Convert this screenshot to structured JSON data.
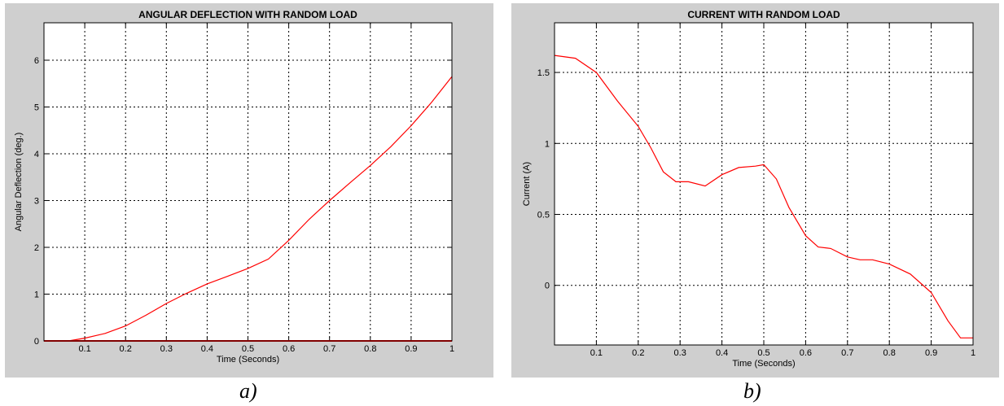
{
  "chart_data": [
    {
      "type": "line",
      "title": "ANGULAR DEFLECTION WITH RANDOM LOAD",
      "xlabel": "Time (Seconds)",
      "ylabel": "Angular Deflection (deg.)",
      "caption": "a)",
      "xlim": [
        0,
        1
      ],
      "ylim": [
        0,
        6.8
      ],
      "xticks": [
        "0.1",
        "0.2",
        "0.3",
        "0.4",
        "0.5",
        "0.6",
        "0.7",
        "0.8",
        "0.9",
        "1"
      ],
      "yticks": [
        "0",
        "1",
        "2",
        "3",
        "4",
        "5",
        "6"
      ],
      "grid": true,
      "color": "#ff0000",
      "series": [
        {
          "x": [
            0.06,
            0.1,
            0.15,
            0.2,
            0.25,
            0.3,
            0.35,
            0.4,
            0.45,
            0.5,
            0.55,
            0.6,
            0.65,
            0.7,
            0.75,
            0.8,
            0.85,
            0.9,
            0.95,
            1.0
          ],
          "values": [
            0.0,
            0.06,
            0.16,
            0.32,
            0.55,
            0.8,
            1.02,
            1.22,
            1.38,
            1.55,
            1.75,
            2.15,
            2.6,
            3.0,
            3.38,
            3.75,
            4.15,
            4.6,
            5.1,
            5.65
          ]
        },
        {
          "x": [
            0,
            1
          ],
          "values": [
            0,
            0
          ]
        }
      ]
    },
    {
      "type": "line",
      "title": "CURRENT WITH RANDOM LOAD",
      "xlabel": "Time (Seconds)",
      "ylabel": "Current (A)",
      "caption": "b)",
      "xlim": [
        0,
        1
      ],
      "ylim": [
        -0.42,
        1.85
      ],
      "xticks": [
        "0.1",
        "0.2",
        "0.3",
        "0.4",
        "0.5",
        "0.6",
        "0.7",
        "0.8",
        "0.9",
        "1"
      ],
      "yticks": [
        "0",
        "0.5",
        "1",
        "1.5"
      ],
      "grid": true,
      "color": "#ff0000",
      "series": [
        {
          "x": [
            0.0,
            0.05,
            0.1,
            0.15,
            0.2,
            0.23,
            0.26,
            0.29,
            0.32,
            0.36,
            0.4,
            0.44,
            0.48,
            0.5,
            0.53,
            0.56,
            0.6,
            0.63,
            0.66,
            0.7,
            0.73,
            0.76,
            0.8,
            0.85,
            0.9,
            0.94,
            0.97,
            1.0
          ],
          "values": [
            1.62,
            1.6,
            1.5,
            1.3,
            1.12,
            0.97,
            0.8,
            0.73,
            0.73,
            0.7,
            0.78,
            0.83,
            0.84,
            0.85,
            0.75,
            0.55,
            0.35,
            0.27,
            0.26,
            0.2,
            0.18,
            0.18,
            0.15,
            0.08,
            -0.05,
            -0.25,
            -0.37,
            -0.37
          ]
        }
      ]
    }
  ]
}
